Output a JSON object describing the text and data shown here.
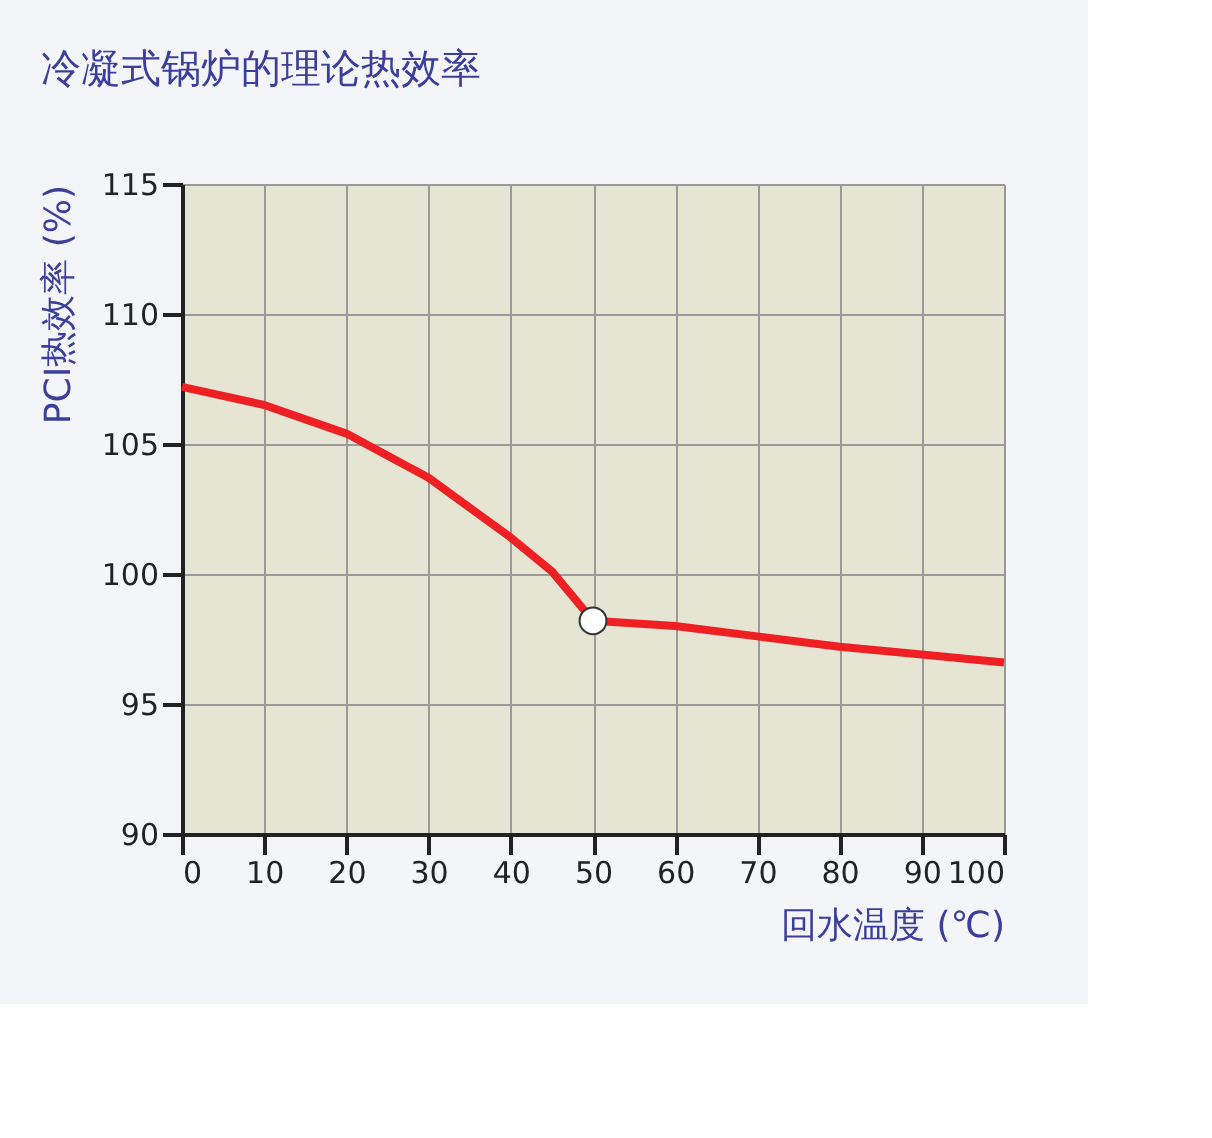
{
  "chart_data": {
    "type": "line",
    "title": "冷凝式锅炉的理论热效率",
    "xlabel": "回水温度 (℃)",
    "ylabel": "PCI热效率 (%)",
    "xlim": [
      0,
      100
    ],
    "xticks": [
      0,
      10,
      20,
      30,
      40,
      50,
      60,
      70,
      80,
      90,
      100
    ],
    "ylim": [
      90,
      115
    ],
    "yticks": [
      90,
      95,
      100,
      105,
      110,
      115
    ],
    "grid": true,
    "line_style": "solid",
    "marker": "none",
    "series": [
      {
        "color": "#ee2024",
        "x": [
          0,
          10,
          20,
          30,
          40,
          45,
          50,
          60,
          70,
          80,
          90,
          100
        ],
        "values": [
          107.2,
          106.5,
          105.4,
          103.7,
          101.4,
          100.1,
          98.2,
          98.0,
          97.6,
          97.2,
          96.9,
          96.6
        ]
      },
      {
        "type": "scatter",
        "marker": "circle",
        "color": "#ffffff",
        "x": [
          50
        ],
        "values": [
          98.2
        ]
      }
    ]
  }
}
